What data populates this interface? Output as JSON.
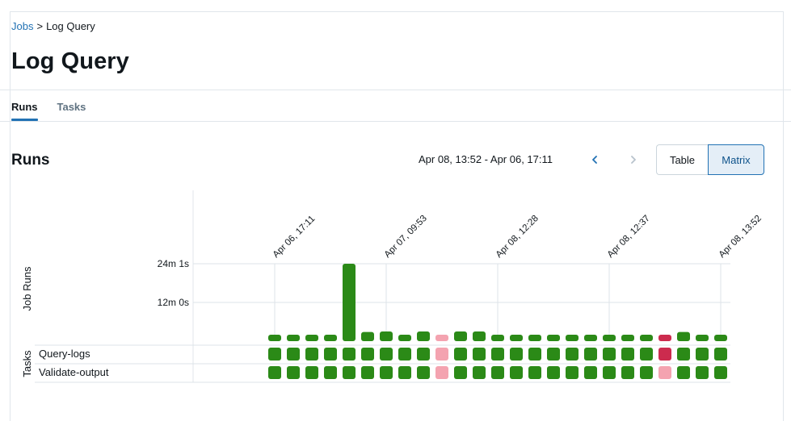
{
  "breadcrumb": {
    "parent": "Jobs",
    "separator": ">",
    "current": "Log Query"
  },
  "page": {
    "title": "Log Query"
  },
  "tabs": [
    {
      "label": "Runs",
      "active": true
    },
    {
      "label": "Tasks",
      "active": false
    }
  ],
  "runs": {
    "title": "Runs",
    "date_range": "Apr 08, 13:52 - Apr 06, 17:11",
    "view_toggle": {
      "table_label": "Table",
      "matrix_label": "Matrix",
      "selected": "Matrix"
    }
  },
  "colors": {
    "success": "#2b8a17",
    "skipped": "#f4a3b0",
    "failed": "#cc2b4e",
    "accent": "#2272b4"
  },
  "chart_data": {
    "type": "bar",
    "title": "",
    "ylabel": "Job Runs",
    "row_group_label": "Tasks",
    "ytick_labels": [
      "24m 1s",
      "12m 0s"
    ],
    "ytick_values_seconds": [
      1441,
      720
    ],
    "ylim_seconds": [
      0,
      1441
    ],
    "date_labels": [
      "Apr 06, 17:11",
      "Apr 07, 09:53",
      "Apr 08, 12:28",
      "Apr 08, 12:37",
      "Apr 08, 13:52"
    ],
    "date_label_run_index": [
      0,
      6,
      12,
      18,
      24
    ],
    "run_durations_seconds": [
      120,
      120,
      120,
      120,
      1441,
      170,
      180,
      120,
      180,
      120,
      180,
      180,
      120,
      120,
      120,
      120,
      120,
      120,
      120,
      120,
      120,
      120,
      170,
      120,
      120
    ],
    "run_status": [
      "success",
      "success",
      "success",
      "success",
      "success",
      "success",
      "success",
      "success",
      "success",
      "skipped",
      "success",
      "success",
      "success",
      "success",
      "success",
      "success",
      "success",
      "success",
      "success",
      "success",
      "success",
      "failed",
      "success",
      "success",
      "success"
    ],
    "tasks": [
      {
        "name": "Query-logs",
        "status": [
          "success",
          "success",
          "success",
          "success",
          "success",
          "success",
          "success",
          "success",
          "success",
          "skipped",
          "success",
          "success",
          "success",
          "success",
          "success",
          "success",
          "success",
          "success",
          "success",
          "success",
          "success",
          "failed",
          "success",
          "success",
          "success"
        ]
      },
      {
        "name": "Validate-output",
        "status": [
          "success",
          "success",
          "success",
          "success",
          "success",
          "success",
          "success",
          "success",
          "success",
          "skipped",
          "success",
          "success",
          "success",
          "success",
          "success",
          "success",
          "success",
          "success",
          "success",
          "success",
          "success",
          "skipped",
          "success",
          "success",
          "success"
        ]
      }
    ]
  }
}
